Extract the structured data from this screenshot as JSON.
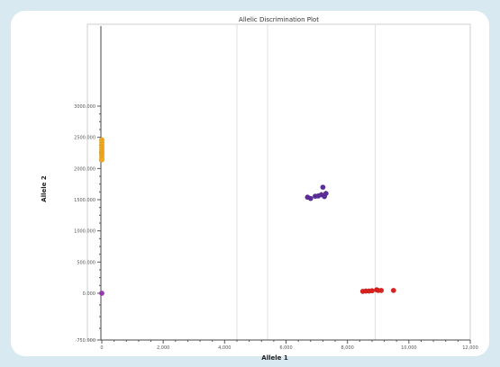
{
  "chart_data": {
    "type": "scatter",
    "title": "Allelic Discrimination Plot",
    "xlabel": "Allele 1",
    "ylabel": "Allele 2",
    "xlim": [
      -0.3,
      12.0
    ],
    "ylim": [
      -750,
      3750
    ],
    "x_ticks": [
      {
        "value": 0,
        "label": "0"
      },
      {
        "value": 2,
        "label": "2,000"
      },
      {
        "value": 4,
        "label": "4,000"
      },
      {
        "value": 6,
        "label": "6,000"
      },
      {
        "value": 8,
        "label": "8,000"
      },
      {
        "value": 10,
        "label": "10,000"
      },
      {
        "value": 12,
        "label": "12,000"
      }
    ],
    "y_ticks": [
      {
        "value": -750,
        "label": "-750.000"
      },
      {
        "value": 0,
        "label": "0.000"
      },
      {
        "value": 500,
        "label": "500.000"
      },
      {
        "value": 1000,
        "label": "1000.000"
      },
      {
        "value": 1500,
        "label": "1500.000"
      },
      {
        "value": 2000,
        "label": "2000.000"
      },
      {
        "value": 2500,
        "label": "2500.000"
      },
      {
        "value": 3000,
        "label": "3000.000"
      }
    ],
    "grid_lines_x": [
      4.4,
      5.4,
      8.9
    ],
    "series": [
      {
        "color": "#f0a81c",
        "points": [
          [
            0.0,
            2460
          ],
          [
            0.0,
            2420
          ],
          [
            0.0,
            2380
          ],
          [
            0.0,
            2340
          ],
          [
            0.0,
            2300
          ],
          [
            0.0,
            2270
          ],
          [
            0.0,
            2240
          ],
          [
            0.0,
            2210
          ],
          [
            0.0,
            2170
          ],
          [
            0.0,
            2140
          ]
        ]
      },
      {
        "color": "#9a35b3",
        "points": [
          [
            0.0,
            0.0
          ]
        ]
      },
      {
        "color": "#5b2d99",
        "points": [
          [
            6.7,
            1540
          ],
          [
            6.8,
            1520
          ],
          [
            6.95,
            1555
          ],
          [
            7.05,
            1560
          ],
          [
            7.15,
            1580
          ],
          [
            7.25,
            1550
          ],
          [
            7.3,
            1600
          ],
          [
            7.2,
            1700
          ]
        ]
      },
      {
        "color": "#d8221e",
        "points": [
          [
            8.5,
            30
          ],
          [
            8.6,
            35
          ],
          [
            8.7,
            35
          ],
          [
            8.8,
            40
          ],
          [
            8.95,
            55
          ],
          [
            9.0,
            45
          ],
          [
            9.1,
            45
          ],
          [
            9.5,
            45
          ]
        ]
      }
    ]
  }
}
